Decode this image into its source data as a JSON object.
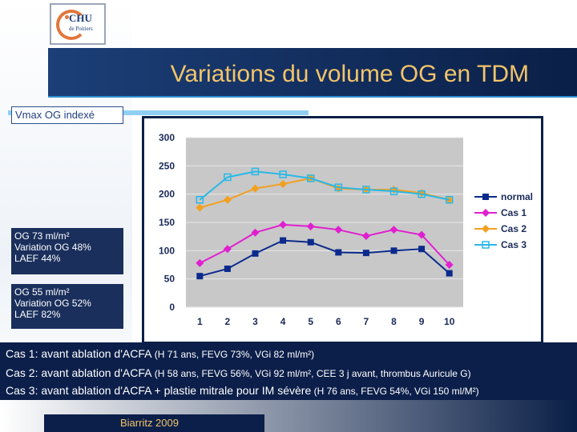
{
  "logo": {
    "name": "CHU",
    "sub": "de Poitiers"
  },
  "title": "Variations du volume OG en TDM",
  "vmax_label": "Vmax OG indexé",
  "box1": {
    "line1": "OG 73 ml/m²",
    "line2": "Variation OG 48%",
    "line3": "LAEF 44%"
  },
  "box2": {
    "line1": "OG 55 ml/m²",
    "line2": "Variation OG 52%",
    "line3": "LAEF 82%"
  },
  "cases": [
    {
      "main": "Cas 1: avant ablation d'ACFA",
      "detail": " (H 71 ans, FEVG 73%, VGi 82 ml/m²)"
    },
    {
      "main": "Cas 2: avant ablation d'ACFA",
      "detail": " (H 58 ans, FEVG 56%, VGi 92 ml/m², CEE 3 j avant, thrombus Auricule G)"
    },
    {
      "main": "Cas 3: avant ablation d'ACFA + plastie mitrale pour IM sévère",
      "detail": " (H 76 ans, FEVG 54%, VGi 150 ml/M²)"
    }
  ],
  "footer": "Biarritz 2009",
  "colors": {
    "normal": "#0b2a8c",
    "cas1": "#e020d0",
    "cas2": "#f2a020",
    "cas3": "#28b8e8",
    "plot_bg": "#c8c8c8",
    "title": "#f2c46a"
  },
  "chart_data": {
    "type": "line",
    "categories": [
      "1",
      "2",
      "3",
      "4",
      "5",
      "6",
      "7",
      "8",
      "9",
      "10"
    ],
    "ylim": [
      0,
      300
    ],
    "yticks": [
      "0",
      "50",
      "100",
      "150",
      "200",
      "250",
      "300"
    ],
    "legend_position": "right",
    "grid": "horizontal",
    "series": [
      {
        "name": "normal",
        "marker": "square",
        "values": [
          55,
          68,
          95,
          118,
          115,
          97,
          96,
          100,
          103,
          60
        ]
      },
      {
        "name": "Cas 1",
        "marker": "diamond",
        "values": [
          78,
          103,
          132,
          146,
          143,
          137,
          126,
          137,
          128,
          75
        ]
      },
      {
        "name": "Cas 2",
        "marker": "diamond",
        "values": [
          176,
          190,
          210,
          218,
          228,
          210,
          208,
          208,
          202,
          190
        ]
      },
      {
        "name": "Cas 3",
        "marker": "square-open",
        "values": [
          190,
          230,
          240,
          235,
          228,
          212,
          208,
          205,
          200,
          190
        ]
      }
    ]
  }
}
